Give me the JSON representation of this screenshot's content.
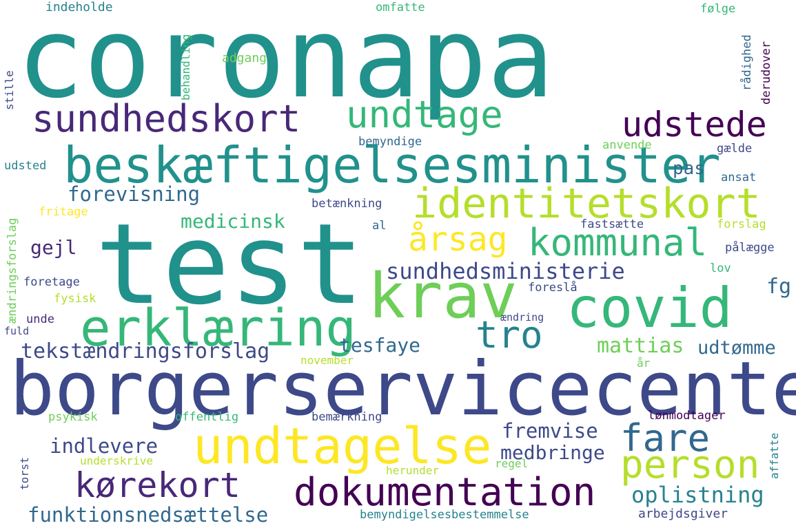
{
  "words": {
    "coronapa": "coronapa",
    "test": "test",
    "borgerservicecenter": "borgerservicecenter",
    "beskaeftigelsesminister": "beskæftigelsesminister",
    "identitetskort": "identitetskort",
    "undtagelse": "undtagelse",
    "covid": "covid",
    "krav": "krav",
    "erklaering": "erklæring",
    "sundhedskort": "sundhedskort",
    "kommunal": "kommunal",
    "undtage": "undtage",
    "udstede": "udstede",
    "dokumentation": "dokumentation",
    "person": "person",
    "fare": "fare",
    "aarsag": "årsag",
    "korekort": "kørekort",
    "tro": "tro",
    "sundhedsministerie": "sundhedsministerie",
    "tekstaendringsforslag": "tekstændringsforslag",
    "funktionsnedsaettelse": "funktionsnedsættelse",
    "oplistning": "oplistning",
    "forevisning": "forevisning",
    "medicinsk": "medicinsk",
    "tesfaye": "tesfaye",
    "mattias": "mattias",
    "udtomme": "udtømme",
    "fremvise": "fremvise",
    "medbringe": "medbringe",
    "indlevere": "indlevere",
    "gejl": "gejl",
    "pas": "pas",
    "fg": "fg",
    "indeholde": "indeholde",
    "omfatte": "omfatte",
    "folge": "følge",
    "adgang": "adgang",
    "behandling": "behandling",
    "stille": "stille",
    "raadighed": "rådighed",
    "derudover": "derudover",
    "bemyndige": "bemyndige",
    "anvende": "anvende",
    "gaelde": "gælde",
    "udsted": "udsted",
    "ansat": "ansat",
    "betaenkning": "betænkning",
    "fritage": "fritage",
    "al": "al",
    "fastsaette": "fastsætte",
    "forslag": "forslag",
    "palaegge": "pålægge",
    "aendringsforslag": "ændringsforslag",
    "lov": "lov",
    "foretage": "foretage",
    "foreslaa": "foreslå",
    "fysisk": "fysisk",
    "unde": "unde",
    "aendring": "ændring",
    "fuld": "fuld",
    "november": "november",
    "aar": "år",
    "psykisk": "psykisk",
    "offentlig": "offentlig",
    "bemaerkning": "bemærkning",
    "lonmodtager": "lønmodtager",
    "underskrive": "underskrive",
    "regel": "regel",
    "herunder": "herunder",
    "torst": "torst",
    "affatte": "affatte",
    "bemyndigelsesbestemmelse": "bemyndigelsesbestemmelse",
    "arbejdsgiver": "arbejdsgiver"
  },
  "colors": {
    "teal": "#21918c",
    "tealAlt": "#1f9e89",
    "darkPurple": "#440154",
    "purple": "#482878",
    "indigo": "#3e4989",
    "blue": "#31688e",
    "steel": "#26828e",
    "green": "#35b779",
    "lightGreen": "#6ece58",
    "lime": "#b5de2b",
    "yellow": "#fde725"
  }
}
